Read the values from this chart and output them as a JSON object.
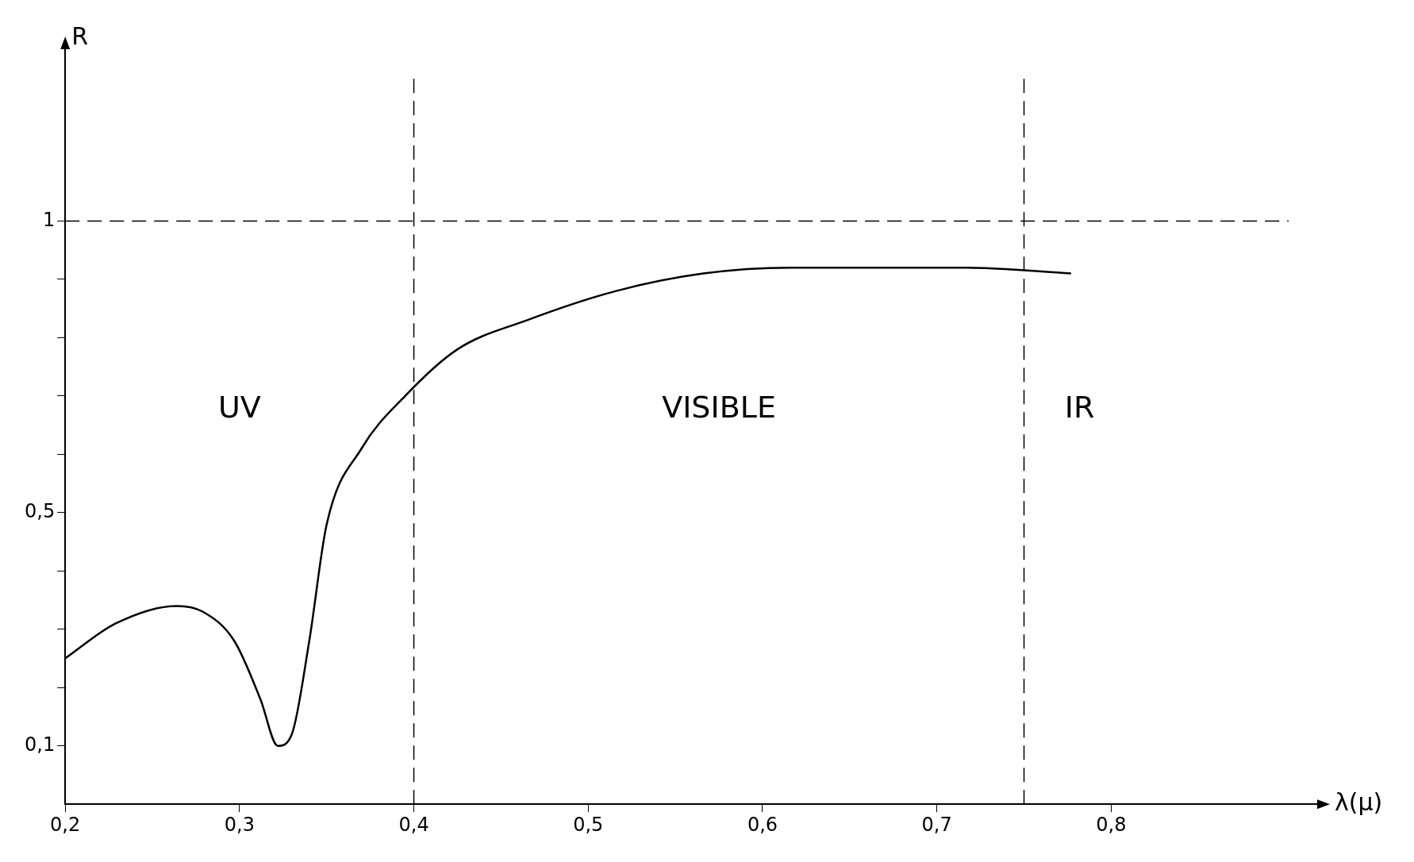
{
  "chart_data": {
    "type": "line",
    "xlabel": "λ(μ)",
    "ylabel": "R",
    "color": "#000000",
    "marker": "none",
    "line_style": "solid",
    "x": [
      0.2,
      0.229,
      0.264,
      0.279,
      0.297,
      0.312,
      0.322,
      0.33,
      0.34,
      0.35,
      0.37,
      0.395,
      0.425,
      0.465,
      0.516,
      0.566,
      0.616,
      0.666,
      0.717,
      0.777
    ],
    "values": [
      0.25,
      0.31,
      0.34,
      0.33,
      0.28,
      0.18,
      0.1,
      0.12,
      0.28,
      0.48,
      0.61,
      0.7,
      0.78,
      0.83,
      0.88,
      0.91,
      0.92,
      0.92,
      0.92,
      0.91
    ],
    "xlim": [
      0.2,
      0.92
    ],
    "ylim": [
      0,
      1.3
    ],
    "xticks": [
      {
        "value": 0.2,
        "label": "0,2"
      },
      {
        "value": 0.3,
        "label": "0,3"
      },
      {
        "value": 0.4,
        "label": "0,4"
      },
      {
        "value": 0.5,
        "label": "0,5"
      },
      {
        "value": 0.6,
        "label": "0,6"
      },
      {
        "value": 0.7,
        "label": "0,7"
      },
      {
        "value": 0.8,
        "label": "0,8"
      }
    ],
    "yticks": [
      {
        "value": 0.1,
        "label": "0,1"
      },
      {
        "value": 0.2,
        "label": null
      },
      {
        "value": 0.3,
        "label": null
      },
      {
        "value": 0.4,
        "label": null
      },
      {
        "value": 0.5,
        "label": "0,5"
      },
      {
        "value": 0.6,
        "label": null
      },
      {
        "value": 0.7,
        "label": null
      },
      {
        "value": 0.8,
        "label": null
      },
      {
        "value": 0.9,
        "label": null
      },
      {
        "value": 1,
        "label": "1"
      }
    ],
    "ref_lines": [
      {
        "axis": "y",
        "value": 1,
        "line_style": "dashed"
      },
      {
        "axis": "x",
        "value": 0.4,
        "line_style": "dashed"
      },
      {
        "axis": "x",
        "value": 0.75,
        "line_style": "dashed"
      }
    ],
    "annotations": [
      "UV",
      "VISIBLE",
      "IR"
    ]
  }
}
